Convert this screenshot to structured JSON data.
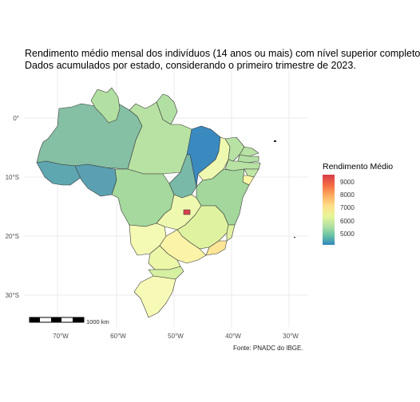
{
  "title": {
    "line1": "Rendimento médio mensal dos indivíduos (14 anos ou mais) com nível superior completo",
    "line2": "Dados acumulados por estado, considerando o primeiro trimestre de 2023."
  },
  "axes": {
    "x_ticks": [
      "70°W",
      "60°W",
      "50°W",
      "40°W",
      "30°W"
    ],
    "y_ticks": [
      "0°",
      "10°S",
      "20°S",
      "30°S"
    ]
  },
  "legend": {
    "title": "Rendimento Médio",
    "labels": [
      "9000",
      "8000",
      "7000",
      "6000",
      "5000"
    ]
  },
  "scale_bar": {
    "label": "1000 km"
  },
  "caption": "Fonte: PNADC do IBGE.",
  "colors": {
    "low": "#3288bd",
    "mid_low": "#66c2a5",
    "mid": "#abdda4",
    "mid_high": "#e6f598",
    "high": "#fee08b",
    "very_high": "#d73c4a",
    "grid": "#ebebeb",
    "border": "#3a3a3a"
  },
  "chart_data": {
    "type": "map",
    "region": "Brasil",
    "variable": "Rendimento Médio",
    "scale_range": [
      4500,
      9500
    ],
    "legend_placement": "right",
    "grid": true,
    "states": [
      {
        "uf": "AM",
        "value": 5450
      },
      {
        "uf": "PA",
        "value": 5900
      },
      {
        "uf": "RR",
        "value": 6000
      },
      {
        "uf": "AP",
        "value": 6000
      },
      {
        "uf": "AC",
        "value": 4950
      },
      {
        "uf": "RO",
        "value": 4900
      },
      {
        "uf": "MT",
        "value": 5900
      },
      {
        "uf": "TO",
        "value": 5300
      },
      {
        "uf": "MA",
        "value": 4750
      },
      {
        "uf": "PI",
        "value": 6300
      },
      {
        "uf": "CE",
        "value": 5900
      },
      {
        "uf": "RN",
        "value": 5900
      },
      {
        "uf": "PB",
        "value": 6000
      },
      {
        "uf": "PE",
        "value": 5900
      },
      {
        "uf": "AL",
        "value": 5800
      },
      {
        "uf": "SE",
        "value": 6900
      },
      {
        "uf": "BA",
        "value": 5700
      },
      {
        "uf": "MS",
        "value": 6600
      },
      {
        "uf": "GO",
        "value": 6600
      },
      {
        "uf": "DF",
        "value": 9200
      },
      {
        "uf": "MG",
        "value": 6300
      },
      {
        "uf": "ES",
        "value": 6000
      },
      {
        "uf": "RJ",
        "value": 7300
      },
      {
        "uf": "SP",
        "value": 6900
      },
      {
        "uf": "PR",
        "value": 6700
      },
      {
        "uf": "SC",
        "value": 6300
      },
      {
        "uf": "RS",
        "value": 6800
      }
    ]
  }
}
